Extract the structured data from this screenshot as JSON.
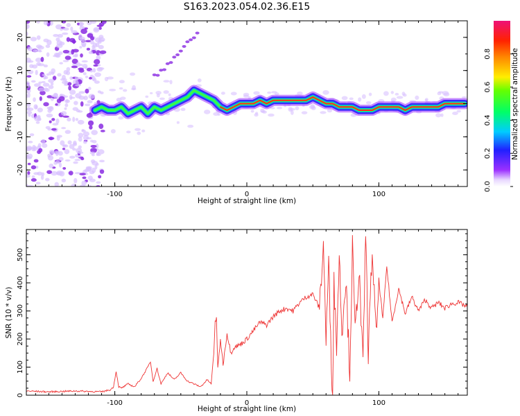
{
  "title": "S163.2023.054.02.36.E15",
  "chart_data": [
    {
      "type": "heatmap",
      "name": "spectrogram",
      "xlabel": "Height of straight line (km)",
      "ylabel": "Frequency (Hz)",
      "xlim": [
        -167,
        167
      ],
      "ylim": [
        -25,
        25
      ],
      "x_ticks": [
        "-100",
        "0",
        "100"
      ],
      "y_ticks": [
        "-20",
        "-10",
        "0",
        "10",
        "20"
      ],
      "ridge": {
        "x": [
          -115,
          -110,
          -105,
          -100,
          -95,
          -90,
          -85,
          -80,
          -75,
          -70,
          -65,
          -60,
          -55,
          -50,
          -45,
          -40,
          -35,
          -30,
          -25,
          -20,
          -15,
          -10,
          -5,
          0,
          5,
          10,
          15,
          20,
          25,
          30,
          35,
          40,
          45,
          50,
          55,
          60,
          65,
          70,
          75,
          80,
          85,
          90,
          95,
          100,
          105,
          110,
          115,
          120,
          125,
          130,
          135,
          140,
          145,
          150,
          155,
          160,
          165
        ],
        "y": [
          -2,
          -1,
          -2,
          -2,
          -1,
          -3,
          -2,
          -1,
          -3,
          -1,
          -2,
          -1,
          0,
          1,
          2,
          4,
          3,
          2,
          1,
          -1,
          -2,
          -1,
          0,
          0,
          0,
          1,
          0,
          1,
          1,
          1,
          1,
          1,
          1,
          2,
          1,
          0,
          0,
          -1,
          -1,
          -1,
          -2,
          -2,
          -2,
          -1,
          -1,
          -1,
          -1,
          -2,
          -1,
          -1,
          -1,
          -1,
          -1,
          0,
          0,
          0,
          0
        ],
        "peak_from": -22,
        "peak_to": 165
      },
      "colorbar": {
        "label": "Normalized spectral amplitude",
        "range": [
          0,
          1
        ],
        "ticks": [
          "0.0",
          "0.2",
          "0.4",
          "0.6",
          "0.8"
        ]
      }
    },
    {
      "type": "line",
      "name": "snr",
      "xlabel": "Height of straight line (km)",
      "ylabel": "SNR (10 * v/v)",
      "xlim": [
        -167,
        167
      ],
      "ylim": [
        0,
        590
      ],
      "x_ticks": [
        "-100",
        "0",
        "100"
      ],
      "y_ticks": [
        "0",
        "100",
        "200",
        "300",
        "400",
        "500"
      ],
      "color": "#ee3333",
      "series": [
        {
          "x": [
            -167,
            -150,
            -130,
            -110,
            -103,
            -101,
            -99,
            -97,
            -95,
            -90,
            -85,
            -80,
            -75,
            -73,
            -71,
            -68,
            -65,
            -60,
            -55,
            -50,
            -45,
            -40,
            -35,
            -30,
            -27,
            -25,
            -24,
            -23,
            -22,
            -20,
            -18,
            -15,
            -12,
            -10,
            -5,
            0,
            5,
            10,
            15,
            20,
            25,
            30,
            35,
            40,
            45,
            50,
            55,
            58,
            60,
            62,
            64,
            65,
            66,
            68,
            70,
            72,
            75,
            78,
            80,
            82,
            85,
            88,
            90,
            92,
            95,
            98,
            100,
            103,
            106,
            110,
            115,
            120,
            125,
            130,
            135,
            140,
            145,
            150,
            155,
            160,
            167
          ],
          "y": [
            15,
            12,
            15,
            12,
            20,
            30,
            85,
            30,
            25,
            40,
            30,
            60,
            100,
            120,
            50,
            95,
            40,
            80,
            55,
            80,
            50,
            40,
            30,
            55,
            40,
            150,
            260,
            280,
            90,
            200,
            110,
            220,
            150,
            170,
            180,
            200,
            230,
            260,
            250,
            280,
            300,
            310,
            300,
            330,
            350,
            360,
            310,
            540,
            200,
            470,
            120,
            5,
            400,
            180,
            500,
            230,
            420,
            80,
            530,
            220,
            450,
            100,
            590,
            150,
            520,
            200,
            410,
            270,
            460,
            260,
            380,
            290,
            350,
            300,
            340,
            310,
            330,
            310,
            325,
            330,
            315
          ]
        }
      ]
    }
  ]
}
